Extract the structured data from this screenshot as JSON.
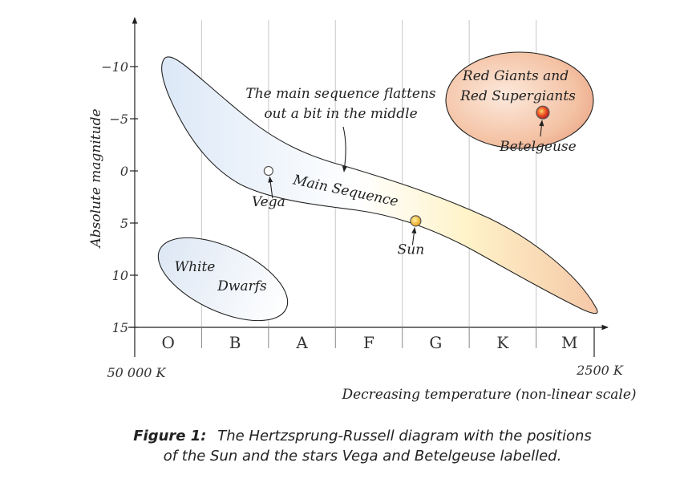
{
  "chart_data": {
    "type": "scatter",
    "title": "Hertzsprung-Russell diagram",
    "xlabel": "Decreasing temperature (non-linear scale)",
    "ylabel": "Absolute magnitude",
    "x_start_label": "50 000 K",
    "x_end_label": "2500 K",
    "spectral_classes": [
      "O",
      "B",
      "A",
      "F",
      "G",
      "K",
      "M"
    ],
    "y_ticks": [
      {
        "value": -10,
        "label": "−10"
      },
      {
        "value": -5,
        "label": "−5"
      },
      {
        "value": 0,
        "label": "0"
      },
      {
        "value": 5,
        "label": "5"
      },
      {
        "value": 10,
        "label": "10"
      },
      {
        "value": 15,
        "label": "15"
      }
    ],
    "ylim": [
      15,
      -15
    ],
    "xlim": [
      0,
      7
    ],
    "stars": [
      {
        "name": "Vega",
        "x": 2.0,
        "y": 0.0,
        "color": "#ffffff"
      },
      {
        "name": "Sun",
        "x": 4.2,
        "y": 4.8,
        "color": "#f5c43a"
      },
      {
        "name": "Betelgeuse",
        "x": 6.1,
        "y": -5.6,
        "color": "#e0452a"
      }
    ],
    "regions": [
      {
        "label": "Main Sequence"
      },
      {
        "label_lines": [
          "White",
          "Dwarfs"
        ]
      },
      {
        "label_lines": [
          "Red Giants and",
          "Red Supergiants"
        ]
      }
    ],
    "annotation_lines": [
      "The main sequence flattens",
      "out a bit in the middle"
    ]
  },
  "caption": {
    "label": "Figure 1:",
    "line1": "The Hertzsprung-Russell diagram with the positions",
    "line2": "of the Sun and the stars Vega and Betelgeuse labelled."
  }
}
